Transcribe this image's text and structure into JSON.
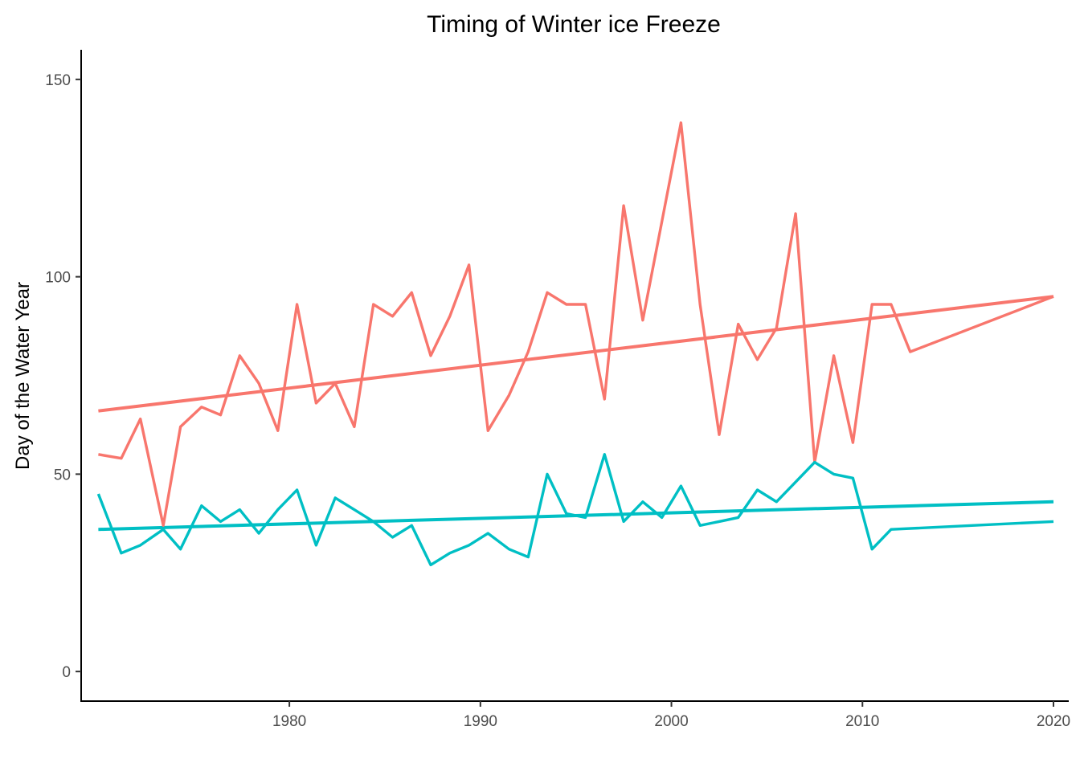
{
  "chart_data": {
    "type": "line",
    "title": "Timing of Winter ice Freeze",
    "xlabel": "",
    "ylabel": "Day of the Water Year",
    "xlim": [
      1969.1,
      2020.8
    ],
    "ylim": [
      -7.5,
      157.5
    ],
    "x_ticks": [
      1980,
      1990,
      2000,
      2010,
      2020
    ],
    "y_ticks": [
      0,
      50,
      100,
      150
    ],
    "grid": false,
    "legend": "none",
    "series": [
      {
        "color": "#F8766D",
        "x": [
          1970,
          1971,
          1972,
          1973,
          1974,
          1975,
          1976,
          1977,
          1978,
          1979,
          1980,
          1981,
          1982,
          1983,
          1984,
          1985,
          1986,
          1987,
          1988,
          1989,
          1990,
          1991,
          1992,
          1993,
          1994,
          1995,
          1996,
          1997,
          1998,
          1999,
          2000,
          2001,
          2002,
          2003,
          2004,
          2005,
          2006,
          2007,
          2008,
          2009,
          2010,
          2011,
          2012,
          2013,
          2014,
          2015,
          2016,
          2017,
          2018,
          2019
        ],
        "values": [
          55,
          54,
          64,
          37,
          62,
          67,
          65,
          80,
          73,
          61,
          93,
          68,
          73,
          62,
          93,
          90,
          96,
          80,
          90,
          103,
          61,
          70,
          81,
          96,
          93,
          93,
          69,
          118,
          89,
          114,
          139,
          93,
          60,
          88,
          79,
          87,
          116,
          53,
          80,
          58,
          93,
          93,
          81,
          95,
          null,
          null,
          null,
          null,
          null,
          null
        ]
      },
      {
        "color": "#00BFC4",
        "x": [
          1970,
          1971,
          1972,
          1973,
          1974,
          1975,
          1976,
          1977,
          1978,
          1979,
          1980,
          1981,
          1982,
          1983,
          1984,
          1985,
          1986,
          1987,
          1988,
          1989,
          1990,
          1991,
          1992,
          1993,
          1994,
          1995,
          1996,
          1997,
          1998,
          1999,
          2000,
          2001,
          2002,
          2003,
          2004,
          2005,
          2006,
          2007,
          2008,
          2009,
          2010,
          2011,
          2012,
          2013,
          2014,
          2015,
          2016,
          2017,
          2018,
          2019
        ],
        "values": [
          45,
          30,
          32,
          36,
          31,
          42,
          38,
          41,
          35,
          41,
          46,
          32,
          44,
          41,
          38,
          34,
          37,
          27,
          30,
          32,
          35,
          31,
          29,
          50,
          40,
          39,
          55,
          38,
          43,
          39,
          47,
          37,
          38,
          39,
          46,
          43,
          48,
          53,
          50,
          49,
          31,
          36,
          38,
          null,
          null,
          null,
          null,
          null,
          null,
          null
        ]
      }
    ],
    "trend_lines": [
      {
        "color": "#F8766D",
        "x": [
          1970,
          2020
        ],
        "values": [
          66,
          95
        ]
      },
      {
        "color": "#00BFC4",
        "x": [
          1970,
          2020
        ],
        "values": [
          36,
          43
        ]
      }
    ]
  },
  "series_points": {
    "red": [
      [
        1970,
        55
      ],
      [
        1971.2,
        54
      ],
      [
        1972.2,
        64
      ],
      [
        1973.4,
        37
      ],
      [
        1974.3,
        62
      ],
      [
        1975.4,
        67
      ],
      [
        1976.4,
        65
      ],
      [
        1977.4,
        80
      ],
      [
        1978.4,
        73
      ],
      [
        1979.4,
        61
      ],
      [
        1980.4,
        93
      ],
      [
        1981.4,
        68
      ],
      [
        1982.4,
        73
      ],
      [
        1983.4,
        62
      ],
      [
        1984.4,
        93
      ],
      [
        1985.4,
        90
      ],
      [
        1986.4,
        96
      ],
      [
        1987.4,
        80
      ],
      [
        1988.4,
        90
      ],
      [
        1989.4,
        103
      ],
      [
        1990.4,
        61
      ],
      [
        1991.5,
        70
      ],
      [
        1992.5,
        81
      ],
      [
        1993.5,
        96
      ],
      [
        1994.5,
        93
      ],
      [
        1995.5,
        93
      ],
      [
        1996.5,
        69
      ],
      [
        1997.5,
        118
      ],
      [
        1998.5,
        89
      ],
      [
        1999.5,
        114
      ],
      [
        2000.5,
        139
      ],
      [
        2001.5,
        93
      ],
      [
        2002.5,
        60
      ],
      [
        2003.5,
        88
      ],
      [
        2004.5,
        79
      ],
      [
        2005.5,
        87
      ],
      [
        2006.5,
        116
      ],
      [
        2007.5,
        53
      ],
      [
        2008.5,
        80
      ],
      [
        2009.5,
        58
      ],
      [
        2010.5,
        93
      ],
      [
        2011.5,
        93
      ],
      [
        2012.5,
        81
      ],
      [
        2020,
        95
      ]
    ],
    "cyan": [
      [
        1970,
        45
      ],
      [
        1971.2,
        30
      ],
      [
        1972.2,
        32
      ],
      [
        1973.4,
        36
      ],
      [
        1974.3,
        31
      ],
      [
        1975.4,
        42
      ],
      [
        1976.4,
        38
      ],
      [
        1977.4,
        41
      ],
      [
        1978.4,
        35
      ],
      [
        1979.4,
        41
      ],
      [
        1980.4,
        46
      ],
      [
        1981.4,
        32
      ],
      [
        1982.4,
        44
      ],
      [
        1983.4,
        41
      ],
      [
        1984.4,
        38
      ],
      [
        1985.4,
        34
      ],
      [
        1986.4,
        37
      ],
      [
        1987.4,
        27
      ],
      [
        1988.4,
        30
      ],
      [
        1989.4,
        32
      ],
      [
        1990.4,
        35
      ],
      [
        1991.5,
        31
      ],
      [
        1992.5,
        29
      ],
      [
        1993.5,
        50
      ],
      [
        1994.5,
        40
      ],
      [
        1995.5,
        39
      ],
      [
        1996.5,
        55
      ],
      [
        1997.5,
        38
      ],
      [
        1998.5,
        43
      ],
      [
        1999.5,
        39
      ],
      [
        2000.5,
        47
      ],
      [
        2001.5,
        37
      ],
      [
        2002.5,
        38
      ],
      [
        2003.5,
        39
      ],
      [
        2004.5,
        46
      ],
      [
        2005.5,
        43
      ],
      [
        2006.5,
        48
      ],
      [
        2007.5,
        53
      ],
      [
        2008.5,
        50
      ],
      [
        2009.5,
        49
      ],
      [
        2010.5,
        31
      ],
      [
        2011.5,
        36
      ],
      [
        2020,
        38
      ]
    ]
  }
}
